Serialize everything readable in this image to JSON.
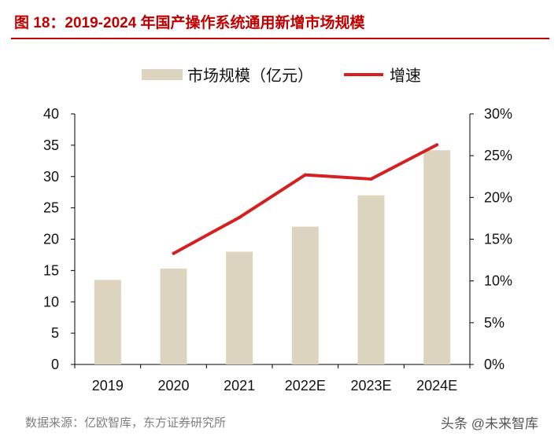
{
  "title": "图 18：2019-2024 年国产操作系统通用新增市场规模",
  "source": "数据来源：亿欧智库，东方证券研究所",
  "watermark": "头条 @未来智库",
  "colors": {
    "bar": "#ddd4bf",
    "line": "#d42020",
    "title": "#c00000"
  },
  "chart_data": {
    "type": "bar",
    "categories": [
      "2019",
      "2020",
      "2021",
      "2022E",
      "2023E",
      "2024E"
    ],
    "series": [
      {
        "name": "市场规模（亿元）",
        "type": "bar",
        "axis": "left",
        "values": [
          13.5,
          15.3,
          18.0,
          22.0,
          27.0,
          34.2
        ]
      },
      {
        "name": "增速",
        "type": "line",
        "axis": "right",
        "values": [
          null,
          13.3,
          17.6,
          22.7,
          22.2,
          26.3
        ]
      }
    ],
    "y_left": {
      "min": 0,
      "max": 40,
      "ticks": [
        "0",
        "5",
        "10",
        "15",
        "20",
        "25",
        "30",
        "35",
        "40"
      ]
    },
    "y_right": {
      "min": 0,
      "max": 30,
      "ticks": [
        "0%",
        "5%",
        "10%",
        "15%",
        "20%",
        "25%",
        "30%"
      ]
    },
    "grid": false,
    "legend_position": "top"
  }
}
